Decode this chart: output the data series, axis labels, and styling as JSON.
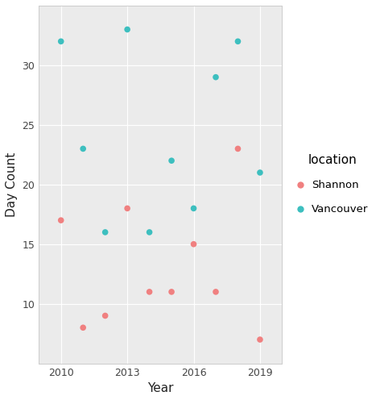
{
  "xlabel": "Year",
  "ylabel": "Day Count",
  "shannon": {
    "years": [
      2010,
      2011,
      2012,
      2013,
      2014,
      2015,
      2016,
      2017,
      2018,
      2019
    ],
    "values": [
      17,
      8,
      9,
      18,
      11,
      11,
      15,
      11,
      23,
      7
    ]
  },
  "vancouver": {
    "years": [
      2010,
      2011,
      2012,
      2013,
      2014,
      2015,
      2016,
      2017,
      2018,
      2019
    ],
    "values": [
      32,
      23,
      16,
      33,
      16,
      22,
      18,
      29,
      32,
      21
    ]
  },
  "shannon_color": "#F08080",
  "vancouver_color": "#3DBFBF",
  "background_color": "#ffffff",
  "panel_color": "#ebebeb",
  "grid_color": "#ffffff",
  "ylim": [
    5,
    35
  ],
  "xlim": [
    2009.0,
    2020.0
  ],
  "yticks": [
    10,
    15,
    20,
    25,
    30
  ],
  "xticks": [
    2010,
    2013,
    2016,
    2019
  ],
  "title_fontsize": 14,
  "subtitle_fontsize": 10,
  "axis_label_fontsize": 11,
  "tick_fontsize": 9,
  "legend_title": "location",
  "legend_labels": [
    "Shannon",
    "Vancouver"
  ],
  "marker_size": 30
}
